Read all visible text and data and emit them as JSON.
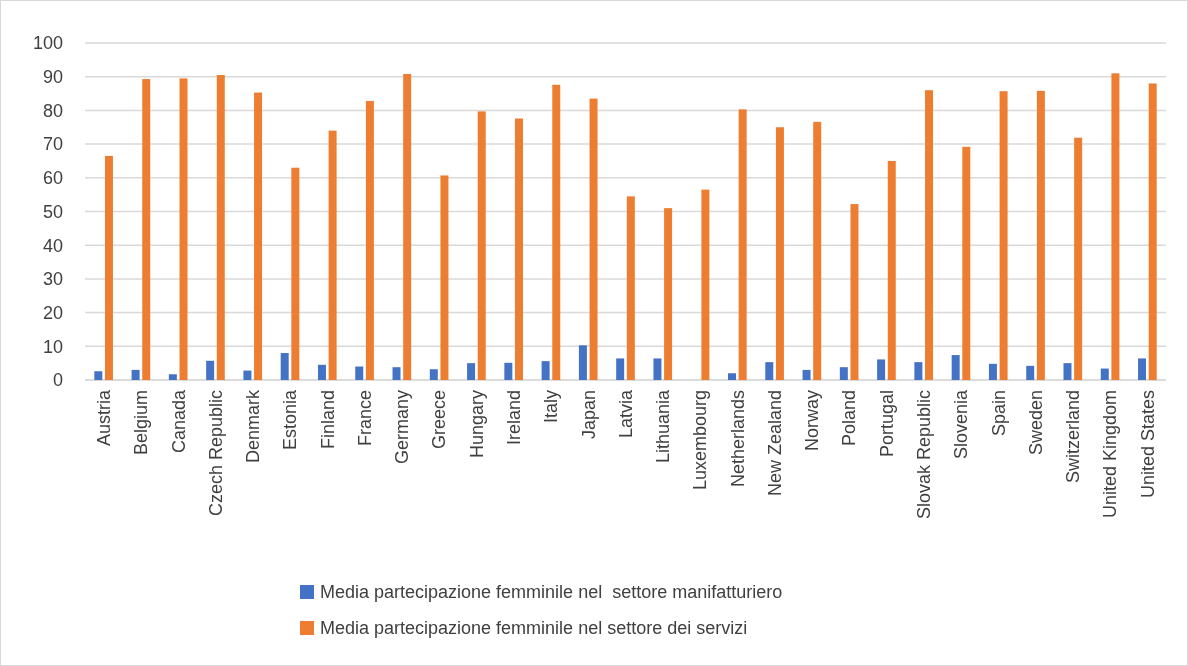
{
  "chart_data": {
    "type": "bar",
    "categories": [
      "Austria",
      "Belgium",
      "Canada",
      "Czech Republic",
      "Denmark",
      "Estonia",
      "Finland",
      "France",
      "Germany",
      "Greece",
      "Hungary",
      "Ireland",
      "Italy",
      "Japan",
      "Latvia",
      "Lithuania",
      "Luxembourg",
      "Netherlands",
      "New Zealand",
      "Norway",
      "Poland",
      "Portugal",
      "Slovak Republic",
      "Slovenia",
      "Spain",
      "Sweden",
      "Switzerland",
      "United Kingdom",
      "United States"
    ],
    "series": [
      {
        "name": "Media partecipazione femminile nel  settore manifatturiero",
        "color": "#4472c4",
        "values": [
          2.6,
          3,
          1.7,
          5.7,
          2.8,
          8,
          4.5,
          4,
          3.8,
          3.2,
          5,
          5.1,
          5.6,
          10.3,
          6.4,
          6.4,
          null,
          2,
          5.3,
          3,
          3.8,
          6.1,
          5.3,
          7.4,
          4.8,
          4.2,
          5,
          3.4,
          6.4
        ]
      },
      {
        "name": "Media partecipazione femminile nel settore dei servizi",
        "color": "#ed7d31",
        "values": [
          66.5,
          89.3,
          89.5,
          90.5,
          85.3,
          63,
          74,
          82.8,
          90.8,
          60.7,
          79.7,
          77.6,
          87.6,
          83.5,
          54.5,
          51,
          56.5,
          80.3,
          75,
          76.6,
          52.2,
          65,
          86,
          69.2,
          85.7,
          85.8,
          71.9,
          91,
          88
        ]
      }
    ],
    "ylim": [
      0,
      100
    ],
    "yticks": [
      0,
      10,
      20,
      30,
      40,
      50,
      60,
      70,
      80,
      90,
      100
    ],
    "grid": "y",
    "legend": "bottom"
  }
}
